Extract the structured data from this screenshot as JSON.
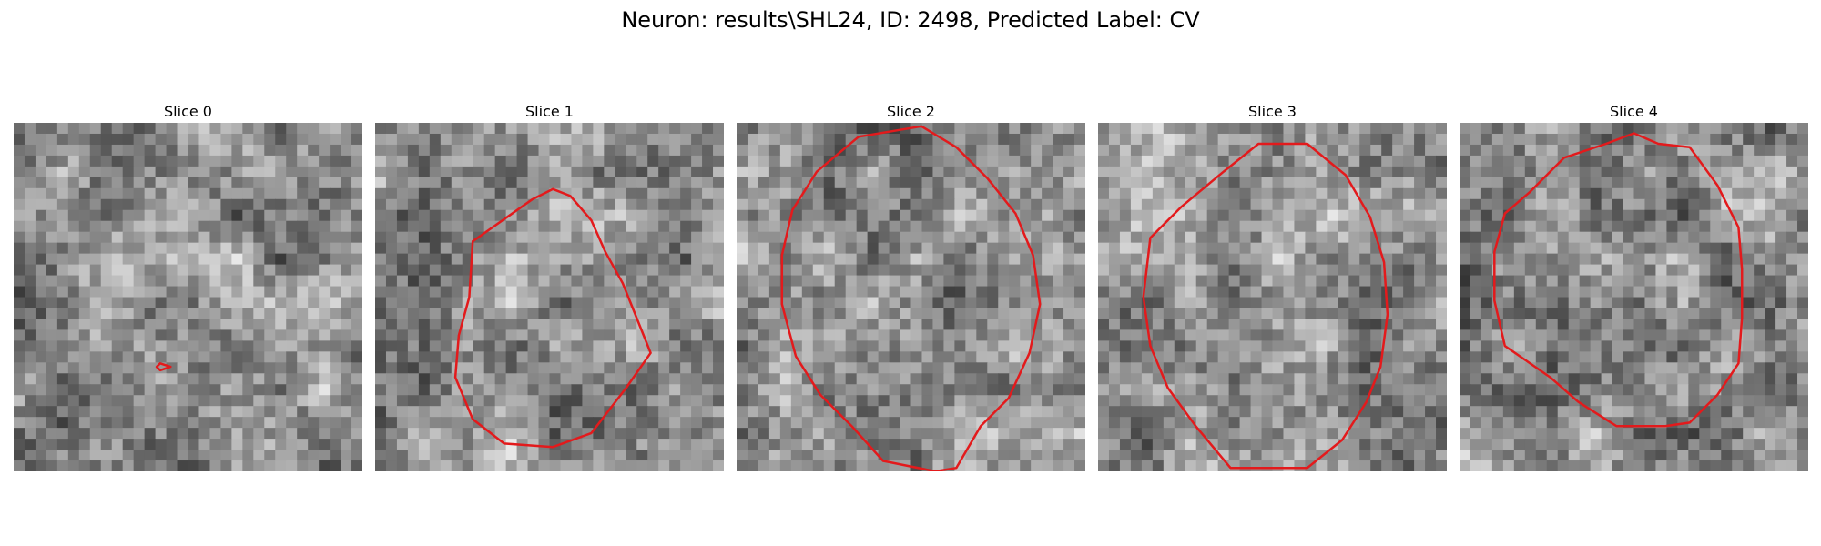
{
  "figure": {
    "title": "Neuron: results\\SHL24, ID: 2498, Predicted Label: CV"
  },
  "panels": [
    {
      "title": "Slice 0",
      "seed": 11,
      "contour": [
        [
          0.42,
          0.69
        ],
        [
          0.45,
          0.7
        ],
        [
          0.42,
          0.71
        ],
        [
          0.41,
          0.7
        ]
      ]
    },
    {
      "title": "Slice 1",
      "seed": 23,
      "contour": [
        [
          0.45,
          0.22
        ],
        [
          0.51,
          0.19
        ],
        [
          0.56,
          0.21
        ],
        [
          0.62,
          0.28
        ],
        [
          0.66,
          0.37
        ],
        [
          0.71,
          0.46
        ],
        [
          0.75,
          0.56
        ],
        [
          0.79,
          0.66
        ],
        [
          0.72,
          0.76
        ],
        [
          0.62,
          0.89
        ],
        [
          0.51,
          0.93
        ],
        [
          0.37,
          0.92
        ],
        [
          0.28,
          0.85
        ],
        [
          0.23,
          0.73
        ],
        [
          0.24,
          0.61
        ],
        [
          0.27,
          0.5
        ],
        [
          0.28,
          0.34
        ]
      ]
    },
    {
      "title": "Slice 2",
      "seed": 37,
      "contour": [
        [
          0.23,
          0.14
        ],
        [
          0.35,
          0.04
        ],
        [
          0.53,
          0.01
        ],
        [
          0.63,
          0.07
        ],
        [
          0.72,
          0.16
        ],
        [
          0.8,
          0.26
        ],
        [
          0.85,
          0.38
        ],
        [
          0.87,
          0.52
        ],
        [
          0.84,
          0.66
        ],
        [
          0.78,
          0.79
        ],
        [
          0.7,
          0.87
        ],
        [
          0.63,
          0.99
        ],
        [
          0.57,
          1.0
        ],
        [
          0.42,
          0.97
        ],
        [
          0.33,
          0.87
        ],
        [
          0.24,
          0.78
        ],
        [
          0.17,
          0.67
        ],
        [
          0.13,
          0.52
        ],
        [
          0.13,
          0.38
        ],
        [
          0.16,
          0.25
        ]
      ]
    },
    {
      "title": "Slice 3",
      "seed": 51,
      "contour": [
        [
          0.36,
          0.14
        ],
        [
          0.46,
          0.06
        ],
        [
          0.6,
          0.06
        ],
        [
          0.71,
          0.15
        ],
        [
          0.78,
          0.27
        ],
        [
          0.82,
          0.4
        ],
        [
          0.83,
          0.55
        ],
        [
          0.81,
          0.7
        ],
        [
          0.77,
          0.8
        ],
        [
          0.7,
          0.91
        ],
        [
          0.6,
          0.99
        ],
        [
          0.38,
          0.99
        ],
        [
          0.28,
          0.87
        ],
        [
          0.2,
          0.76
        ],
        [
          0.15,
          0.64
        ],
        [
          0.13,
          0.5
        ],
        [
          0.15,
          0.33
        ],
        [
          0.24,
          0.24
        ]
      ]
    },
    {
      "title": "Slice 4",
      "seed": 67,
      "contour": [
        [
          0.2,
          0.2
        ],
        [
          0.3,
          0.1
        ],
        [
          0.42,
          0.06
        ],
        [
          0.5,
          0.03
        ],
        [
          0.57,
          0.06
        ],
        [
          0.66,
          0.07
        ],
        [
          0.74,
          0.18
        ],
        [
          0.8,
          0.3
        ],
        [
          0.81,
          0.42
        ],
        [
          0.81,
          0.56
        ],
        [
          0.8,
          0.69
        ],
        [
          0.74,
          0.78
        ],
        [
          0.66,
          0.86
        ],
        [
          0.59,
          0.87
        ],
        [
          0.45,
          0.87
        ],
        [
          0.34,
          0.8
        ],
        [
          0.26,
          0.73
        ],
        [
          0.13,
          0.64
        ],
        [
          0.1,
          0.51
        ],
        [
          0.1,
          0.37
        ],
        [
          0.13,
          0.26
        ]
      ]
    }
  ],
  "colors": {
    "contour": "#e31a1c"
  }
}
